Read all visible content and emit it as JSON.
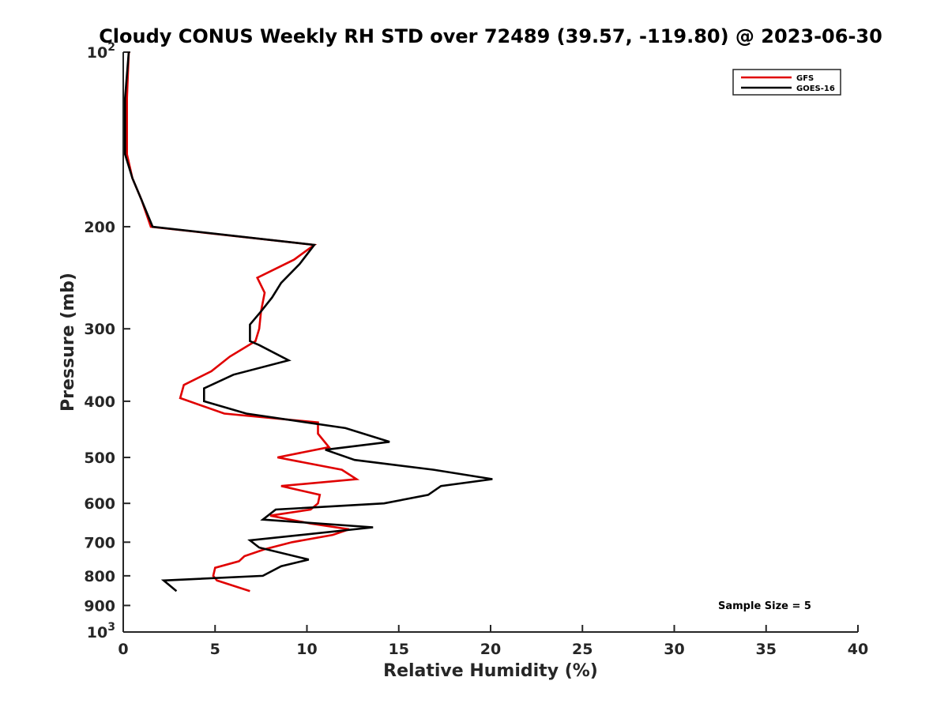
{
  "chart_data": {
    "type": "line",
    "title": "Cloudy CONUS Weekly RH STD over 72489 (39.57, -119.80) @ 2023-06-30",
    "xlabel": "Relative Humidity (%)",
    "ylabel": "Pressure (mb)",
    "xlim": [
      0,
      40
    ],
    "ylim": [
      100,
      1000
    ],
    "y_scale": "log",
    "y_reversed": true,
    "grid": false,
    "legend_position": "top-right",
    "x_ticks": [
      0,
      5,
      10,
      15,
      20,
      25,
      30,
      35,
      40
    ],
    "x_tick_labels": [
      "0",
      "5",
      "10",
      "15",
      "20",
      "25",
      "30",
      "35",
      "40"
    ],
    "y_ticks": [
      100,
      200,
      300,
      400,
      500,
      600,
      700,
      800,
      900,
      1000
    ],
    "y_tick_labels": [
      {
        "base": "10",
        "exp": "2"
      },
      {
        "base": "200",
        "exp": ""
      },
      {
        "base": "300",
        "exp": ""
      },
      {
        "base": "400",
        "exp": ""
      },
      {
        "base": "500",
        "exp": ""
      },
      {
        "base": "600",
        "exp": ""
      },
      {
        "base": "700",
        "exp": ""
      },
      {
        "base": "800",
        "exp": ""
      },
      {
        "base": "900",
        "exp": ""
      },
      {
        "base": "10",
        "exp": "3"
      }
    ],
    "annotation": "Sample Size = 5",
    "series": [
      {
        "name": "GFS",
        "color": "#e00000",
        "points": [
          [
            0.3,
            100
          ],
          [
            0.2,
            120
          ],
          [
            0.2,
            150
          ],
          [
            0.5,
            165
          ],
          [
            1.0,
            180
          ],
          [
            1.5,
            200
          ],
          [
            10.4,
            215
          ],
          [
            9.3,
            228
          ],
          [
            7.3,
            245
          ],
          [
            7.7,
            260
          ],
          [
            7.5,
            280
          ],
          [
            7.4,
            300
          ],
          [
            7.2,
            315
          ],
          [
            5.8,
            335
          ],
          [
            4.8,
            355
          ],
          [
            3.3,
            375
          ],
          [
            3.1,
            395
          ],
          [
            5.5,
            420
          ],
          [
            10.6,
            435
          ],
          [
            10.6,
            455
          ],
          [
            11.2,
            480
          ],
          [
            8.4,
            500
          ],
          [
            11.9,
            525
          ],
          [
            12.7,
            545
          ],
          [
            8.6,
            560
          ],
          [
            10.7,
            580
          ],
          [
            10.6,
            600
          ],
          [
            10.2,
            615
          ],
          [
            8.0,
            630
          ],
          [
            10.2,
            650
          ],
          [
            12.3,
            665
          ],
          [
            11.4,
            680
          ],
          [
            9.2,
            700
          ],
          [
            7.7,
            720
          ],
          [
            6.6,
            740
          ],
          [
            6.3,
            755
          ],
          [
            5.0,
            775
          ],
          [
            4.9,
            800
          ],
          [
            5.1,
            815
          ],
          [
            6.9,
            850
          ]
        ]
      },
      {
        "name": "GOES-16",
        "color": "#000000",
        "points": [
          [
            0.3,
            100
          ],
          [
            0.1,
            120
          ],
          [
            0.1,
            150
          ],
          [
            0.5,
            165
          ],
          [
            1.0,
            180
          ],
          [
            1.6,
            200
          ],
          [
            10.4,
            215
          ],
          [
            9.6,
            232
          ],
          [
            8.6,
            250
          ],
          [
            8.1,
            265
          ],
          [
            7.5,
            280
          ],
          [
            6.9,
            295
          ],
          [
            6.9,
            315
          ],
          [
            7.4,
            320
          ],
          [
            9.0,
            340
          ],
          [
            6.0,
            360
          ],
          [
            4.4,
            380
          ],
          [
            4.4,
            400
          ],
          [
            6.7,
            420
          ],
          [
            12.1,
            445
          ],
          [
            14.5,
            470
          ],
          [
            11.0,
            485
          ],
          [
            12.6,
            505
          ],
          [
            16.9,
            525
          ],
          [
            20.1,
            545
          ],
          [
            17.3,
            560
          ],
          [
            16.6,
            580
          ],
          [
            14.2,
            600
          ],
          [
            8.3,
            615
          ],
          [
            7.6,
            640
          ],
          [
            13.6,
            660
          ],
          [
            6.9,
            695
          ],
          [
            7.4,
            715
          ],
          [
            10.1,
            750
          ],
          [
            8.6,
            770
          ],
          [
            7.6,
            800
          ],
          [
            2.2,
            815
          ],
          [
            2.9,
            850
          ]
        ]
      }
    ]
  }
}
